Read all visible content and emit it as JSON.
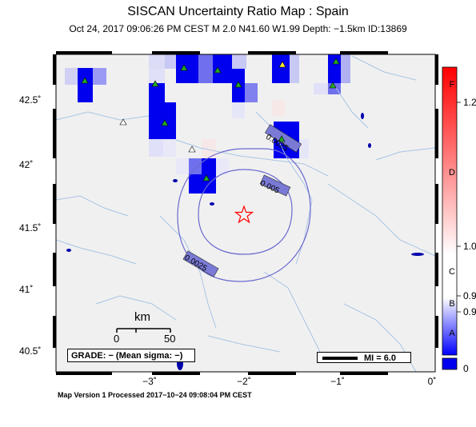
{
  "title": "SISCAN Uncertainty Ratio Map : Spain",
  "subtitle": "Oct 24, 2017 09:06:26 PM CEST   M 2.0   N41.60 W1.99   Depth: −1.5km   ID:13869",
  "footer": "Map Version 1 Processed 2017−10−24 09:08:04 PM CEST",
  "axes": {
    "y_ticks": [
      "42.5˚",
      "42˚",
      "41.5˚",
      "41˚",
      "40.5˚"
    ],
    "x_ticks": [
      "−3˚",
      "−2˚",
      "−1˚",
      "0˚"
    ]
  },
  "contours": {
    "inner_label": "0.005",
    "outer_label_top": "0.0025",
    "outer_label_bottom": "0.0025"
  },
  "scale_bar": {
    "unit": "km",
    "start": "0",
    "end": "50"
  },
  "grade_text": "GRADE: − (Mean sigma: −)",
  "mi_text": "MI = 6.0",
  "colorbar": {
    "letters": [
      "F",
      "D",
      "C",
      "B",
      "A"
    ],
    "values": [
      "1.2",
      "1.0",
      "0.9",
      "0.9",
      "0"
    ],
    "colors": {
      "top": "#ff0000",
      "mid": "#ffffff",
      "bottom": "#0000ff"
    }
  },
  "epicenter": {
    "lat": 41.6,
    "lon": -1.99,
    "icon": "star-icon",
    "color": "#ff0000"
  },
  "colors": {
    "cell_dark": "#0000ee",
    "cell_light": "#9a9af5",
    "land": "#f0f0f0",
    "river": "#a9c4e6",
    "contour": "#6a6ad0"
  }
}
